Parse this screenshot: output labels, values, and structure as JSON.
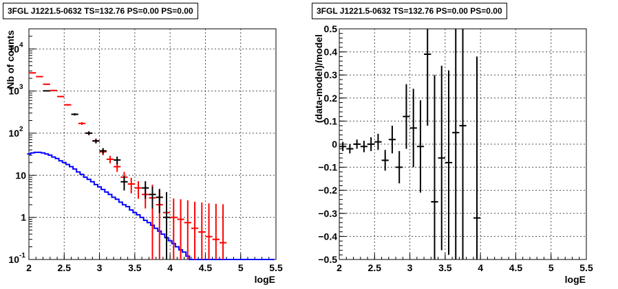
{
  "chart_data": [
    {
      "type": "histogram",
      "title": "3FGL J1221.5-0632 TS=132.76 PS=0.00 PS=0.00",
      "xlabel": "logE",
      "ylabel": "Nb of counts",
      "xlim": [
        2,
        5.5
      ],
      "ylim": [
        0.1,
        30000
      ],
      "yscale": "log",
      "grid": true,
      "xticks": [
        2,
        2.5,
        3,
        3.5,
        4,
        4.5,
        5,
        5.5
      ],
      "ytick_labels": [
        "10^-1",
        "1",
        "10",
        "10^2",
        "10^3",
        "10^4"
      ],
      "series": [
        {
          "color": "#ff0000",
          "style": "steps",
          "x": [
            2.05,
            2.15,
            2.25,
            2.35,
            2.45,
            2.55,
            2.65,
            2.75,
            2.85,
            2.95,
            3.05,
            3.15,
            3.25,
            3.35,
            3.45,
            3.55,
            3.65,
            3.75,
            3.85,
            3.95,
            4.05,
            4.15,
            4.25,
            4.35,
            4.45,
            4.55,
            4.65,
            4.75
          ],
          "values": [
            2700,
            2200,
            1450,
            1030,
            740,
            470,
            280,
            170,
            100,
            66,
            36,
            24,
            16,
            9,
            6.2,
            5,
            3.5,
            2.9,
            2.0,
            1.3,
            1.0,
            0.9,
            0.75,
            0.55,
            0.45,
            0.35,
            0.3,
            0.25
          ]
        },
        {
          "color": "#0000ff",
          "style": "steps",
          "x": [
            2.0,
            2.05,
            2.1,
            2.15,
            2.2,
            2.25,
            2.3,
            2.35,
            2.4,
            2.45,
            2.5,
            2.55,
            2.6,
            2.65,
            2.7,
            2.75,
            2.8,
            2.85,
            2.9,
            2.95,
            3.0,
            3.05,
            3.1,
            3.15,
            3.2,
            3.25,
            3.3,
            3.35,
            3.4,
            3.45,
            3.5,
            3.55,
            3.6,
            3.65,
            3.7,
            3.75,
            3.8,
            3.85,
            3.9,
            3.95,
            4.0,
            4.05,
            4.1,
            4.15,
            4.2,
            4.25,
            4.3,
            4.35,
            4.4,
            4.45,
            4.5,
            4.55,
            4.6,
            4.65,
            4.7,
            4.75,
            4.8,
            4.85,
            4.9,
            4.95,
            5.0,
            5.05,
            5.1,
            5.15,
            5.2,
            5.25,
            5.3,
            5.35,
            5.4,
            5.45
          ],
          "values": [
            32,
            34,
            35,
            35,
            34,
            32,
            30,
            27,
            25,
            22,
            20,
            18,
            16,
            14,
            12,
            10.5,
            9,
            8,
            7,
            6,
            5.3,
            4.6,
            4,
            3.5,
            3,
            2.7,
            2.3,
            2,
            1.8,
            1.5,
            1.3,
            1.15,
            1.0,
            0.85,
            0.75,
            0.65,
            0.55,
            0.47,
            0.4,
            0.33,
            0.28,
            0.24,
            0.2,
            0.17,
            0.15,
            0.12,
            0.1,
            0.1,
            0.1,
            0.1,
            0.1,
            0.1,
            0.1,
            0.1,
            0.1,
            0.1,
            0.1,
            0.1,
            0.1,
            0.1,
            0.1,
            0.1,
            0.1,
            0.1,
            0.1,
            0.1,
            0.1,
            0.1,
            0.1,
            0.1
          ]
        },
        {
          "color": "#000000",
          "style": "errorbars",
          "x": [
            2.25,
            2.65,
            2.85,
            2.95,
            3.05,
            3.25,
            3.35,
            3.65,
            3.75,
            3.85,
            3.95
          ],
          "values": [
            1010,
            280,
            100,
            65,
            38,
            23,
            7,
            5,
            3.5,
            3.0,
            1.0
          ]
        }
      ]
    },
    {
      "type": "scatter",
      "title": "3FGL J1221.5-0632 TS=132.76 PS=0.00 PS=0.00",
      "xlabel": "logE",
      "ylabel": "(data-model)/model",
      "xlim": [
        2,
        5.5
      ],
      "ylim": [
        -0.5,
        0.5
      ],
      "grid": true,
      "xticks": [
        2,
        2.5,
        3,
        3.5,
        4,
        4.5,
        5,
        5.5
      ],
      "yticks": [
        -0.5,
        -0.4,
        -0.3,
        -0.2,
        -0.1,
        0,
        0.1,
        0.2,
        0.3,
        0.4,
        0.5
      ],
      "series": [
        {
          "color": "#000000",
          "x": [
            2.05,
            2.15,
            2.25,
            2.35,
            2.45,
            2.55,
            2.65,
            2.75,
            2.85,
            2.95,
            3.05,
            3.15,
            3.25,
            3.35,
            3.45,
            3.55,
            3.65,
            3.75,
            3.95
          ],
          "values": [
            -0.01,
            -0.02,
            0.0,
            -0.01,
            0.0,
            0.01,
            -0.07,
            0.02,
            -0.1,
            0.12,
            0.07,
            -0.01,
            0.39,
            -0.25,
            -0.06,
            -0.08,
            0.05,
            0.08,
            -0.32
          ],
          "errors": [
            0.02,
            0.02,
            0.02,
            0.025,
            0.03,
            0.035,
            0.045,
            0.06,
            0.07,
            0.14,
            0.17,
            0.2,
            0.31,
            0.55,
            0.4,
            0.4,
            0.55,
            0.6,
            0.7
          ]
        }
      ]
    }
  ]
}
